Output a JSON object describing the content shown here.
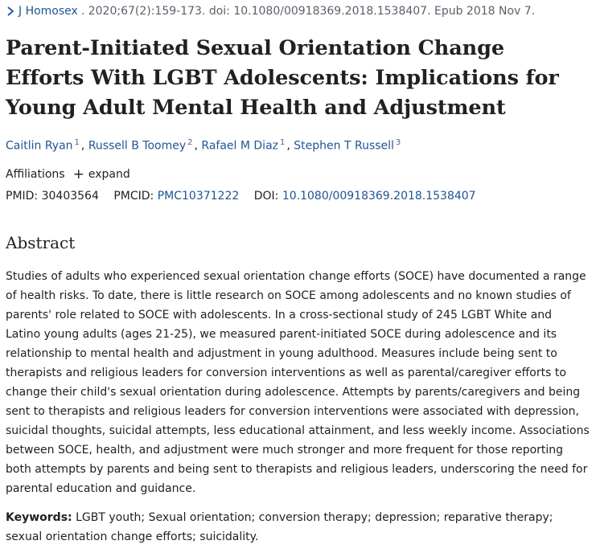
{
  "citation": {
    "journal": "J Homosex",
    "details": ". 2020;67(2):159-173. doi: 10.1080/00918369.2018.1538407. Epub 2018 Nov 7."
  },
  "article": {
    "title": "Parent-Initiated Sexual Orientation Change Efforts With LGBT Adolescents: Implications for Young Adult Mental Health and Adjustment"
  },
  "authors": [
    {
      "name": "Caitlin Ryan",
      "affil": "1"
    },
    {
      "name": "Russell B Toomey",
      "affil": "2"
    },
    {
      "name": "Rafael M Diaz",
      "affil": "1"
    },
    {
      "name": "Stephen T Russell",
      "affil": "3"
    }
  ],
  "affiliations": {
    "label": "Affiliations",
    "expand_label": "expand"
  },
  "identifiers": {
    "pmid_label": "PMID:",
    "pmid": "30403564",
    "pmcid_label": "PMCID:",
    "pmcid": "PMC10371222",
    "doi_label": "DOI:",
    "doi": "10.1080/00918369.2018.1538407"
  },
  "abstract": {
    "heading": "Abstract",
    "text": "Studies of adults who experienced sexual orientation change efforts (SOCE) have documented a range of health risks. To date, there is little research on SOCE among adolescents and no known studies of parents' role related to SOCE with adolescents. In a cross-sectional study of 245 LGBT White and Latino young adults (ages 21-25), we measured parent-initiated SOCE during adolescence and its relationship to mental health and adjustment in young adulthood. Measures include being sent to therapists and religious leaders for conversion interventions as well as parental/caregiver efforts to change their child's sexual orientation during adolescence. Attempts by parents/caregivers and being sent to therapists and religious leaders for conversion interventions were associated with depression, suicidal thoughts, suicidal attempts, less educational attainment, and less weekly income. Associations between SOCE, health, and adjustment were much stronger and more frequent for those reporting both attempts by parents and being sent to therapists and religious leaders, underscoring the need for parental education and guidance."
  },
  "keywords": {
    "label": "Keywords:",
    "text": "LGBT youth; Sexual orientation; conversion therapy; depression; reparative therapy; sexual orientation change efforts; suicidality."
  },
  "colors": {
    "link": "#205493",
    "text": "#212121",
    "muted": "#5b616b"
  },
  "icons": {
    "journal_chevron": "chevron-right-icon",
    "expand": "plus-icon"
  }
}
